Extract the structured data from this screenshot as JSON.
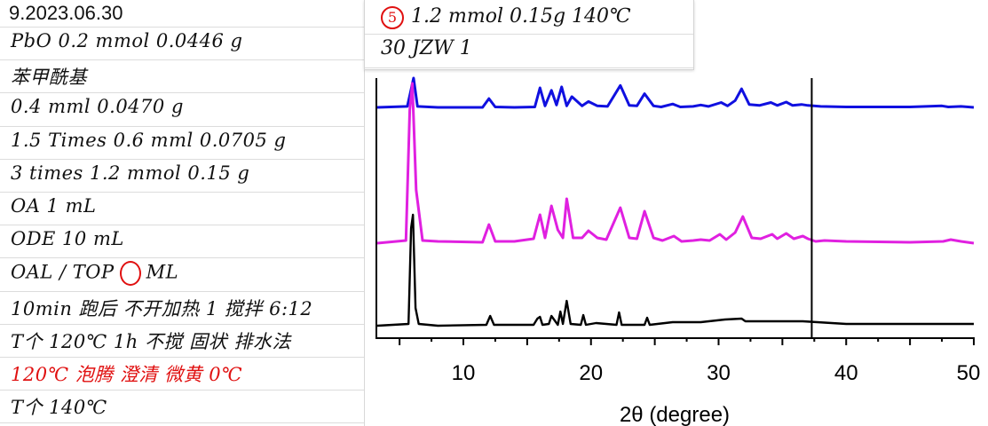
{
  "notes": {
    "title": "9.2023.06.30",
    "lines": [
      {
        "text": "PbO 0.2 mmol   0.0446 g",
        "color": "black"
      },
      {
        "text": "苯甲酰基",
        "color": "black"
      },
      {
        "text": "0.4 mml  0.0470 g",
        "color": "black"
      },
      {
        "text": "1.5 Times 0.6 mml 0.0705 g",
        "color": "black"
      },
      {
        "text": "3 times 1.2 mmol  0.15 g",
        "color": "black"
      },
      {
        "text": "OA 1 mL",
        "color": "black"
      },
      {
        "text": "ODE 10 mL",
        "color": "black"
      },
      {
        "text": "OAL / TOP",
        "mark_after": "ML",
        "color": "black"
      },
      {
        "text": "10min 跑后  不开加热 1 搅拌 6:12",
        "color": "black"
      },
      {
        "text": "T个 120℃ 1h 不搅  固状 排水法",
        "color": "black"
      },
      {
        "text": "120℃ 泡腾  澄清 微黄 0℃",
        "color": "red"
      },
      {
        "text": "T个 140℃",
        "color": "black"
      }
    ]
  },
  "snippet": {
    "number": "5",
    "line1": "1.2 mmol  0.15g  140℃",
    "line2": "30 JZW 1"
  },
  "chart_data": {
    "type": "line",
    "title": "",
    "xlabel": "2θ (degree)",
    "ylabel": "",
    "xlim": [
      3,
      50
    ],
    "xticks": [
      10,
      20,
      30,
      40,
      50
    ],
    "vline_x": 37.3,
    "grid": false,
    "legend": "none",
    "series": [
      {
        "color": "#1010e0",
        "x": [
          3,
          5.6,
          5.85,
          6.1,
          6.4,
          8,
          11.5,
          12.0,
          12.5,
          14,
          15.6,
          16.0,
          16.4,
          16.9,
          17.3,
          17.7,
          18.1,
          18.5,
          19.3,
          19.8,
          20.5,
          21.3,
          22.3,
          23.0,
          23.6,
          24.2,
          24.9,
          25.5,
          26.4,
          27.0,
          28,
          28.6,
          29.2,
          30.2,
          30.7,
          31.3,
          31.8,
          32.4,
          33.2,
          34.1,
          34.6,
          35.3,
          35.8,
          36.5,
          37.0,
          38,
          40,
          45,
          47.5,
          48,
          49,
          50
        ],
        "y": [
          0,
          2,
          30,
          60,
          2,
          0,
          0,
          18,
          1,
          0,
          1,
          40,
          3,
          35,
          5,
          42,
          3,
          22,
          3,
          12,
          3,
          2,
          45,
          4,
          3,
          28,
          3,
          1,
          7,
          1,
          2,
          5,
          2,
          10,
          3,
          14,
          38,
          6,
          4,
          10,
          4,
          11,
          4,
          6,
          4,
          2,
          1,
          1,
          3,
          1,
          2,
          0
        ]
      },
      {
        "color": "#e020e0",
        "x": [
          3,
          5.5,
          5.8,
          6.0,
          6.3,
          6.8,
          8,
          11.5,
          12.0,
          12.5,
          14,
          15.5,
          16.0,
          16.4,
          16.9,
          17.4,
          17.8,
          18.1,
          18.6,
          19.3,
          19.8,
          20.5,
          21.2,
          22.3,
          23.0,
          23.6,
          24.2,
          24.9,
          25.6,
          26.5,
          27.1,
          28,
          28.6,
          29.3,
          30.1,
          30.6,
          31.3,
          31.9,
          32.6,
          33.3,
          34.2,
          34.6,
          35.3,
          35.9,
          36.6,
          37.0,
          37.6,
          38.3,
          40,
          45,
          47.6,
          48.2,
          49,
          50
        ],
        "y": [
          0,
          3,
          150,
          180,
          60,
          3,
          2,
          1,
          21,
          2,
          2,
          5,
          32,
          6,
          42,
          15,
          6,
          50,
          6,
          6,
          14,
          6,
          4,
          40,
          6,
          5,
          36,
          6,
          3,
          8,
          2,
          3,
          4,
          3,
          10,
          4,
          12,
          30,
          6,
          5,
          10,
          5,
          11,
          5,
          8,
          5,
          2,
          3,
          2,
          1,
          2,
          4,
          2,
          0
        ]
      },
      {
        "color": "#000000",
        "x": [
          3,
          5.7,
          5.9,
          6.05,
          6.25,
          6.5,
          8,
          11.8,
          12.1,
          12.4,
          15.5,
          15.8,
          16.0,
          16.2,
          16.7,
          16.9,
          17.4,
          17.6,
          17.8,
          18.1,
          18.4,
          19.2,
          19.4,
          19.6,
          20.4,
          22.0,
          22.2,
          22.4,
          24.2,
          24.4,
          24.6,
          26.4,
          28.6,
          30.5,
          31.8,
          32.1,
          34.2,
          35.3,
          36.6,
          40,
          45,
          50
        ],
        "y": [
          0,
          2,
          110,
          125,
          20,
          2,
          0,
          1,
          11,
          1,
          1,
          8,
          10,
          1,
          2,
          11,
          1,
          16,
          2,
          28,
          2,
          1,
          12,
          1,
          3,
          1,
          15,
          1,
          1,
          9,
          1,
          4,
          4,
          7,
          8,
          5,
          5,
          5,
          5,
          2,
          2,
          2
        ]
      }
    ]
  }
}
